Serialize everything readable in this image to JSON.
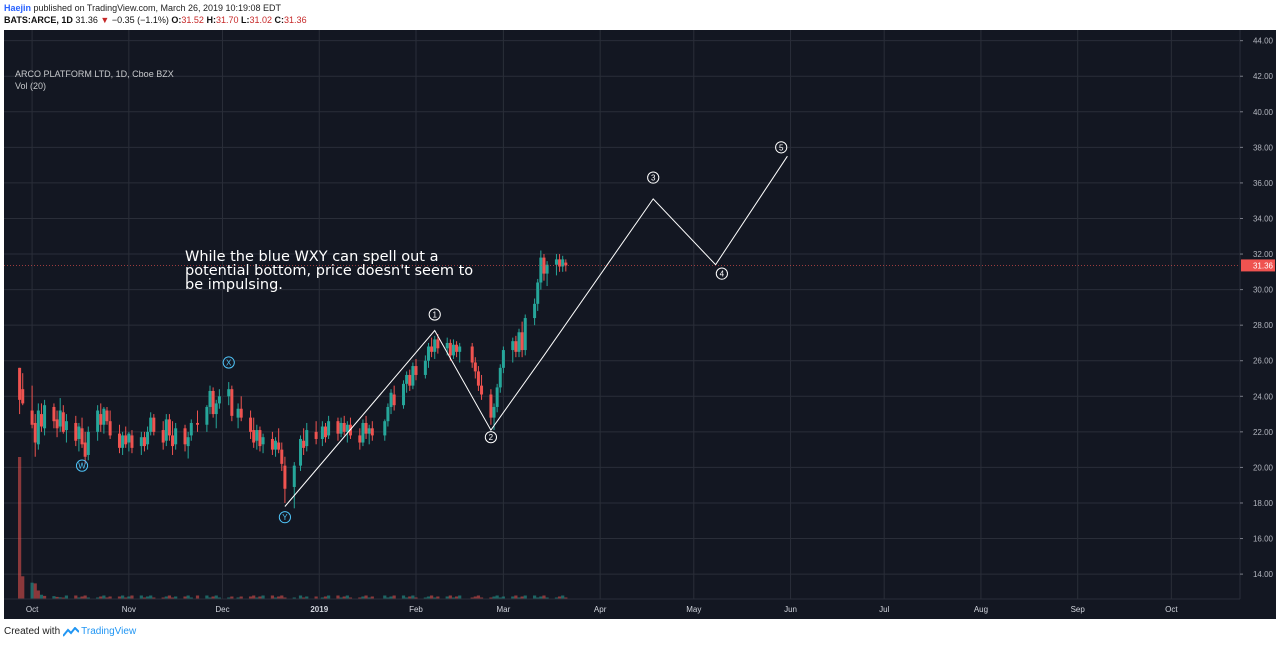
{
  "header": {
    "author": "Haejin",
    "published_text": "published on TradingView.com, March 26, 2019 10:19:08 EDT",
    "symbol": "BATS:ARCE, 1D",
    "last": "31.36",
    "change_arrow": "▼",
    "change": "−0.35 (−1.1%)",
    "o_label": "O:",
    "o_value": "31.52",
    "h_label": "H:",
    "h_value": "31.70",
    "l_label": "L:",
    "l_value": "31.02",
    "c_label": "C:",
    "c_value": "31.36"
  },
  "legend": {
    "title": "ARCO PLATFORM LTD, 1D, Cboe BZX",
    "volume": "Vol (20)"
  },
  "annotation": {
    "text": "While the blue WXY can spell out a potential bottom, price doesn't seem to be impulsing."
  },
  "footer": {
    "created_with": "Created with",
    "brand": "TradingView"
  },
  "colors": {
    "background": "#131722",
    "grid": "#2a2e39",
    "up": "#26a69a",
    "down": "#ef5350",
    "wave_blue": "#4fc3f7",
    "wave_white": "#ffffff",
    "price_tag": "#ef5350"
  },
  "chart_data": {
    "type": "candlestick",
    "y_ticks": [
      "14.00",
      "16.00",
      "18.00",
      "20.00",
      "22.00",
      "24.00",
      "26.00",
      "28.00",
      "30.00",
      "32.00",
      "34.00",
      "36.00",
      "38.00",
      "40.00",
      "42.00",
      "44.00"
    ],
    "x_ticks": [
      {
        "label": "Oct",
        "date": "2018-10-01"
      },
      {
        "label": "Nov",
        "date": "2018-11-01"
      },
      {
        "label": "Dec",
        "date": "2018-12-01"
      },
      {
        "label": "2019",
        "date": "2019-01-01"
      },
      {
        "label": "Feb",
        "date": "2019-02-01"
      },
      {
        "label": "Mar",
        "date": "2019-03-01"
      },
      {
        "label": "Apr",
        "date": "2019-04-01"
      },
      {
        "label": "May",
        "date": "2019-05-01"
      },
      {
        "label": "Jun",
        "date": "2019-06-01"
      },
      {
        "label": "Jul",
        "date": "2019-07-01"
      },
      {
        "label": "Aug",
        "date": "2019-08-01"
      },
      {
        "label": "Sep",
        "date": "2019-09-01"
      },
      {
        "label": "Oct",
        "date": "2019-10-01"
      }
    ],
    "ylim": [
      12.6,
      44.6
    ],
    "last_price_label": "31.36",
    "last_price": 31.36,
    "candles": [
      {
        "date": "2018-09-27",
        "o": 25.6,
        "h": 25.6,
        "l": 23.0,
        "c": 23.8
      },
      {
        "date": "2018-09-28",
        "o": 24.4,
        "h": 25.3,
        "l": 23.5,
        "c": 23.6
      },
      {
        "date": "2018-10-01",
        "o": 23.2,
        "h": 24.6,
        "l": 22.2,
        "c": 22.4
      },
      {
        "date": "2018-10-02",
        "o": 22.5,
        "h": 23.0,
        "l": 20.6,
        "c": 21.4
      },
      {
        "date": "2018-10-03",
        "o": 21.3,
        "h": 23.6,
        "l": 21.0,
        "c": 23.2
      },
      {
        "date": "2018-10-04",
        "o": 23.0,
        "h": 23.6,
        "l": 22.0,
        "c": 22.3
      },
      {
        "date": "2018-10-05",
        "o": 22.2,
        "h": 23.8,
        "l": 21.8,
        "c": 23.5
      },
      {
        "date": "2018-10-08",
        "o": 23.4,
        "h": 23.6,
        "l": 22.2,
        "c": 22.6
      },
      {
        "date": "2018-10-09",
        "o": 22.7,
        "h": 23.2,
        "l": 21.7,
        "c": 22.2
      },
      {
        "date": "2018-10-10",
        "o": 22.3,
        "h": 23.9,
        "l": 22.0,
        "c": 23.2
      },
      {
        "date": "2018-10-11",
        "o": 23.1,
        "h": 23.5,
        "l": 21.9,
        "c": 22.0
      },
      {
        "date": "2018-10-12",
        "o": 22.1,
        "h": 23.0,
        "l": 21.4,
        "c": 22.6
      },
      {
        "date": "2018-10-15",
        "o": 22.5,
        "h": 22.9,
        "l": 21.2,
        "c": 21.5
      },
      {
        "date": "2018-10-16",
        "o": 21.6,
        "h": 22.5,
        "l": 20.9,
        "c": 22.3
      },
      {
        "date": "2018-10-17",
        "o": 22.2,
        "h": 22.8,
        "l": 21.1,
        "c": 21.3
      },
      {
        "date": "2018-10-18",
        "o": 21.4,
        "h": 22.0,
        "l": 20.2,
        "c": 20.6
      },
      {
        "date": "2018-10-19",
        "o": 20.7,
        "h": 22.3,
        "l": 20.4,
        "c": 22.0
      },
      {
        "date": "2018-10-22",
        "o": 22.0,
        "h": 23.5,
        "l": 21.5,
        "c": 23.2
      },
      {
        "date": "2018-10-23",
        "o": 23.0,
        "h": 23.6,
        "l": 22.0,
        "c": 22.4
      },
      {
        "date": "2018-10-24",
        "o": 22.4,
        "h": 23.4,
        "l": 21.9,
        "c": 23.3
      },
      {
        "date": "2018-10-25",
        "o": 23.2,
        "h": 23.4,
        "l": 22.4,
        "c": 22.6
      },
      {
        "date": "2018-10-26",
        "o": 22.6,
        "h": 23.2,
        "l": 21.6,
        "c": 21.8
      },
      {
        "date": "2018-10-29",
        "o": 21.9,
        "h": 22.4,
        "l": 20.8,
        "c": 21.1
      },
      {
        "date": "2018-10-30",
        "o": 21.1,
        "h": 22.0,
        "l": 20.7,
        "c": 21.8
      },
      {
        "date": "2018-10-31",
        "o": 21.8,
        "h": 22.3,
        "l": 21.1,
        "c": 21.3
      },
      {
        "date": "2018-11-01",
        "o": 21.4,
        "h": 22.0,
        "l": 20.9,
        "c": 21.9
      },
      {
        "date": "2018-11-02",
        "o": 21.8,
        "h": 22.1,
        "l": 20.8,
        "c": 21.1
      },
      {
        "date": "2018-11-05",
        "o": 21.2,
        "h": 22.0,
        "l": 20.7,
        "c": 21.7
      },
      {
        "date": "2018-11-06",
        "o": 21.7,
        "h": 22.0,
        "l": 20.9,
        "c": 21.2
      },
      {
        "date": "2018-11-07",
        "o": 21.3,
        "h": 22.3,
        "l": 21.0,
        "c": 22.0
      },
      {
        "date": "2018-11-08",
        "o": 22.0,
        "h": 23.1,
        "l": 21.8,
        "c": 22.8
      },
      {
        "date": "2018-11-09",
        "o": 22.8,
        "h": 23.0,
        "l": 21.8,
        "c": 22.0
      },
      {
        "date": "2018-11-12",
        "o": 22.1,
        "h": 22.6,
        "l": 21.0,
        "c": 21.4
      },
      {
        "date": "2018-11-13",
        "o": 21.5,
        "h": 23.0,
        "l": 21.2,
        "c": 22.7
      },
      {
        "date": "2018-11-14",
        "o": 22.7,
        "h": 23.0,
        "l": 21.5,
        "c": 21.8
      },
      {
        "date": "2018-11-15",
        "o": 21.8,
        "h": 22.6,
        "l": 20.7,
        "c": 21.2
      },
      {
        "date": "2018-11-16",
        "o": 21.3,
        "h": 22.5,
        "l": 21.0,
        "c": 22.2
      },
      {
        "date": "2018-11-19",
        "o": 22.2,
        "h": 22.4,
        "l": 20.9,
        "c": 21.3
      },
      {
        "date": "2018-11-20",
        "o": 21.2,
        "h": 22.0,
        "l": 20.5,
        "c": 21.7
      },
      {
        "date": "2018-11-21",
        "o": 21.8,
        "h": 22.7,
        "l": 21.5,
        "c": 22.5
      },
      {
        "date": "2018-11-23",
        "o": 22.5,
        "h": 23.2,
        "l": 22.0,
        "c": 22.4
      },
      {
        "date": "2018-11-26",
        "o": 22.4,
        "h": 23.5,
        "l": 22.0,
        "c": 23.4
      },
      {
        "date": "2018-11-27",
        "o": 23.4,
        "h": 24.6,
        "l": 23.0,
        "c": 24.3
      },
      {
        "date": "2018-11-28",
        "o": 24.3,
        "h": 24.5,
        "l": 22.8,
        "c": 23.0
      },
      {
        "date": "2018-11-29",
        "o": 23.0,
        "h": 23.8,
        "l": 22.2,
        "c": 23.6
      },
      {
        "date": "2018-11-30",
        "o": 23.6,
        "h": 24.4,
        "l": 23.3,
        "c": 24.0
      },
      {
        "date": "2018-12-03",
        "o": 24.0,
        "h": 24.8,
        "l": 23.5,
        "c": 24.4
      },
      {
        "date": "2018-12-04",
        "o": 24.4,
        "h": 24.6,
        "l": 22.6,
        "c": 22.9
      },
      {
        "date": "2018-12-06",
        "o": 22.8,
        "h": 23.6,
        "l": 22.2,
        "c": 23.3
      },
      {
        "date": "2018-12-07",
        "o": 23.3,
        "h": 24.0,
        "l": 22.6,
        "c": 22.8
      },
      {
        "date": "2018-12-10",
        "o": 22.8,
        "h": 23.2,
        "l": 21.6,
        "c": 22.0
      },
      {
        "date": "2018-12-11",
        "o": 22.1,
        "h": 22.8,
        "l": 21.1,
        "c": 21.4
      },
      {
        "date": "2018-12-12",
        "o": 21.5,
        "h": 22.4,
        "l": 21.0,
        "c": 22.1
      },
      {
        "date": "2018-12-13",
        "o": 22.1,
        "h": 22.3,
        "l": 20.9,
        "c": 21.2
      },
      {
        "date": "2018-12-14",
        "o": 21.3,
        "h": 21.9,
        "l": 20.8,
        "c": 21.7
      },
      {
        "date": "2018-12-17",
        "o": 21.6,
        "h": 22.0,
        "l": 20.7,
        "c": 21.0
      },
      {
        "date": "2018-12-18",
        "o": 21.0,
        "h": 21.7,
        "l": 20.6,
        "c": 21.5
      },
      {
        "date": "2018-12-19",
        "o": 21.4,
        "h": 22.2,
        "l": 20.8,
        "c": 21.0
      },
      {
        "date": "2018-12-20",
        "o": 21.0,
        "h": 21.4,
        "l": 19.8,
        "c": 20.2
      },
      {
        "date": "2018-12-21",
        "o": 20.1,
        "h": 20.6,
        "l": 18.0,
        "c": 18.8
      },
      {
        "date": "2018-12-24",
        "o": 18.9,
        "h": 20.3,
        "l": 17.7,
        "c": 20.1
      },
      {
        "date": "2018-12-26",
        "o": 20.1,
        "h": 21.8,
        "l": 19.8,
        "c": 21.6
      },
      {
        "date": "2018-12-27",
        "o": 21.5,
        "h": 22.2,
        "l": 20.7,
        "c": 21.1
      },
      {
        "date": "2018-12-28",
        "o": 21.2,
        "h": 22.5,
        "l": 20.9,
        "c": 22.1
      },
      {
        "date": "2018-12-31",
        "o": 22.0,
        "h": 22.6,
        "l": 21.3,
        "c": 21.6
      },
      {
        "date": "2019-01-02",
        "o": 21.6,
        "h": 22.6,
        "l": 21.2,
        "c": 22.3
      },
      {
        "date": "2019-01-03",
        "o": 22.3,
        "h": 22.5,
        "l": 21.4,
        "c": 21.7
      },
      {
        "date": "2019-01-04",
        "o": 21.8,
        "h": 22.9,
        "l": 21.6,
        "c": 22.6
      },
      {
        "date": "2019-01-07",
        "o": 22.6,
        "h": 22.8,
        "l": 21.5,
        "c": 21.9
      },
      {
        "date": "2019-01-08",
        "o": 21.9,
        "h": 22.8,
        "l": 21.7,
        "c": 22.5
      },
      {
        "date": "2019-01-09",
        "o": 22.5,
        "h": 22.9,
        "l": 21.8,
        "c": 22.0
      },
      {
        "date": "2019-01-10",
        "o": 22.0,
        "h": 22.6,
        "l": 21.4,
        "c": 22.4
      },
      {
        "date": "2019-01-11",
        "o": 22.4,
        "h": 22.8,
        "l": 21.6,
        "c": 21.8
      },
      {
        "date": "2019-01-14",
        "o": 21.8,
        "h": 22.2,
        "l": 21.0,
        "c": 21.4
      },
      {
        "date": "2019-01-15",
        "o": 21.4,
        "h": 22.7,
        "l": 21.2,
        "c": 22.5
      },
      {
        "date": "2019-01-16",
        "o": 22.5,
        "h": 22.9,
        "l": 21.6,
        "c": 21.9
      },
      {
        "date": "2019-01-17",
        "o": 21.9,
        "h": 22.4,
        "l": 21.3,
        "c": 22.2
      },
      {
        "date": "2019-01-18",
        "o": 22.2,
        "h": 22.6,
        "l": 21.5,
        "c": 21.8
      },
      {
        "date": "2019-01-22",
        "o": 21.8,
        "h": 22.7,
        "l": 21.5,
        "c": 22.6
      },
      {
        "date": "2019-01-23",
        "o": 22.6,
        "h": 23.6,
        "l": 22.3,
        "c": 23.4
      },
      {
        "date": "2019-01-24",
        "o": 23.4,
        "h": 24.4,
        "l": 23.0,
        "c": 24.2
      },
      {
        "date": "2019-01-25",
        "o": 24.1,
        "h": 24.6,
        "l": 23.2,
        "c": 23.5
      },
      {
        "date": "2019-01-28",
        "o": 23.5,
        "h": 24.9,
        "l": 23.3,
        "c": 24.7
      },
      {
        "date": "2019-01-29",
        "o": 24.7,
        "h": 25.4,
        "l": 24.2,
        "c": 25.2
      },
      {
        "date": "2019-01-30",
        "o": 25.2,
        "h": 25.5,
        "l": 24.3,
        "c": 24.6
      },
      {
        "date": "2019-01-31",
        "o": 24.6,
        "h": 25.9,
        "l": 24.4,
        "c": 25.7
      },
      {
        "date": "2019-02-01",
        "o": 25.7,
        "h": 26.1,
        "l": 24.9,
        "c": 25.2
      },
      {
        "date": "2019-02-04",
        "o": 25.2,
        "h": 26.3,
        "l": 25.0,
        "c": 26.0
      },
      {
        "date": "2019-02-05",
        "o": 26.0,
        "h": 27.0,
        "l": 25.6,
        "c": 26.8
      },
      {
        "date": "2019-02-06",
        "o": 26.8,
        "h": 27.3,
        "l": 26.2,
        "c": 26.5
      },
      {
        "date": "2019-02-07",
        "o": 26.5,
        "h": 27.4,
        "l": 26.1,
        "c": 27.2
      },
      {
        "date": "2019-02-08",
        "o": 27.2,
        "h": 27.5,
        "l": 26.4,
        "c": 26.7
      },
      {
        "date": "2019-02-11",
        "o": 26.7,
        "h": 27.3,
        "l": 26.3,
        "c": 27.0
      },
      {
        "date": "2019-02-12",
        "o": 27.0,
        "h": 27.2,
        "l": 26.0,
        "c": 26.3
      },
      {
        "date": "2019-02-13",
        "o": 26.3,
        "h": 27.2,
        "l": 26.1,
        "c": 26.9
      },
      {
        "date": "2019-02-14",
        "o": 26.9,
        "h": 27.1,
        "l": 26.2,
        "c": 26.5
      },
      {
        "date": "2019-02-15",
        "o": 26.5,
        "h": 27.0,
        "l": 25.9,
        "c": 26.8
      },
      {
        "date": "2019-02-19",
        "o": 26.8,
        "h": 27.0,
        "l": 25.6,
        "c": 25.9
      },
      {
        "date": "2019-02-20",
        "o": 25.9,
        "h": 26.2,
        "l": 25.0,
        "c": 25.4
      },
      {
        "date": "2019-02-21",
        "o": 25.4,
        "h": 25.7,
        "l": 24.3,
        "c": 24.6
      },
      {
        "date": "2019-02-22",
        "o": 24.6,
        "h": 25.2,
        "l": 23.8,
        "c": 24.1
      },
      {
        "date": "2019-02-25",
        "o": 24.1,
        "h": 24.4,
        "l": 22.4,
        "c": 22.8
      },
      {
        "date": "2019-02-26",
        "o": 22.8,
        "h": 23.6,
        "l": 22.1,
        "c": 23.4
      },
      {
        "date": "2019-02-27",
        "o": 23.4,
        "h": 24.7,
        "l": 23.1,
        "c": 24.5
      },
      {
        "date": "2019-02-28",
        "o": 24.5,
        "h": 25.8,
        "l": 24.2,
        "c": 25.6
      },
      {
        "date": "2019-03-01",
        "o": 25.6,
        "h": 26.8,
        "l": 25.3,
        "c": 26.6
      },
      {
        "date": "2019-03-04",
        "o": 26.6,
        "h": 27.3,
        "l": 25.9,
        "c": 27.1
      },
      {
        "date": "2019-03-05",
        "o": 27.1,
        "h": 27.4,
        "l": 26.2,
        "c": 26.5
      },
      {
        "date": "2019-03-06",
        "o": 26.5,
        "h": 27.8,
        "l": 26.2,
        "c": 27.6
      },
      {
        "date": "2019-03-07",
        "o": 27.6,
        "h": 28.2,
        "l": 26.2,
        "c": 26.6
      },
      {
        "date": "2019-03-08",
        "o": 26.6,
        "h": 28.6,
        "l": 26.3,
        "c": 28.4
      },
      {
        "date": "2019-03-11",
        "o": 28.4,
        "h": 29.5,
        "l": 28.0,
        "c": 29.2
      },
      {
        "date": "2019-03-12",
        "o": 29.2,
        "h": 30.6,
        "l": 28.8,
        "c": 30.4
      },
      {
        "date": "2019-03-13",
        "o": 30.4,
        "h": 32.2,
        "l": 30.0,
        "c": 31.8
      },
      {
        "date": "2019-03-14",
        "o": 31.8,
        "h": 32.0,
        "l": 30.5,
        "c": 30.9
      },
      {
        "date": "2019-03-15",
        "o": 30.9,
        "h": 31.6,
        "l": 30.2,
        "c": 31.4
      },
      {
        "date": "2019-03-18",
        "o": 31.4,
        "h": 32.0,
        "l": 30.8,
        "c": 31.7
      },
      {
        "date": "2019-03-19",
        "o": 31.7,
        "h": 32.0,
        "l": 31.0,
        "c": 31.3
      },
      {
        "date": "2019-03-20",
        "o": 31.3,
        "h": 31.9,
        "l": 31.0,
        "c": 31.7
      },
      {
        "date": "2019-03-21",
        "o": 31.52,
        "h": 31.7,
        "l": 31.02,
        "c": 31.36
      }
    ],
    "volume": [
      {
        "date": "2018-09-27",
        "v": 1000,
        "up": false
      },
      {
        "date": "2018-09-28",
        "v": 160,
        "up": false
      },
      {
        "date": "2018-10-01",
        "v": 115,
        "up": true
      },
      {
        "date": "2018-10-02",
        "v": 110,
        "up": false
      },
      {
        "date": "2018-10-03",
        "v": 60,
        "up": false
      },
      {
        "date": "2018-10-04",
        "v": 30,
        "up": true
      },
      {
        "date": "2018-10-05",
        "v": 22,
        "up": false
      },
      {
        "date": "2018-10-08",
        "v": 20,
        "up": true
      },
      {
        "date": "2018-10-09",
        "v": 15,
        "up": false
      },
      {
        "date": "2018-10-10",
        "v": 12,
        "up": true
      },
      {
        "date": "2018-10-11",
        "v": 10,
        "up": false
      }
    ],
    "wave_labels": [
      {
        "label": "W",
        "date": "2018-10-17",
        "price": 20.1,
        "color": "blue"
      },
      {
        "label": "X",
        "date": "2018-12-03",
        "price": 25.9,
        "color": "blue"
      },
      {
        "label": "Y",
        "date": "2018-12-21",
        "price": 17.2,
        "color": "blue"
      },
      {
        "label": "1",
        "date": "2019-02-07",
        "price": 28.6,
        "color": "white"
      },
      {
        "label": "2",
        "date": "2019-02-25",
        "price": 21.7,
        "color": "white"
      },
      {
        "label": "3",
        "date": "2019-04-18",
        "price": 36.3,
        "color": "white"
      },
      {
        "label": "4",
        "date": "2019-05-10",
        "price": 30.9,
        "color": "white"
      },
      {
        "label": "5",
        "date": "2019-05-29",
        "price": 38.0,
        "color": "white"
      }
    ],
    "projection_path": [
      {
        "date": "2018-12-21",
        "price": 17.8
      },
      {
        "date": "2019-02-07",
        "price": 27.7
      },
      {
        "date": "2019-02-25",
        "price": 22.1
      },
      {
        "date": "2019-03-14",
        "price": 26.3
      },
      {
        "date": "2019-04-18",
        "price": 35.1
      },
      {
        "date": "2019-05-08",
        "price": 31.4
      },
      {
        "date": "2019-05-31",
        "price": 37.5
      }
    ]
  }
}
